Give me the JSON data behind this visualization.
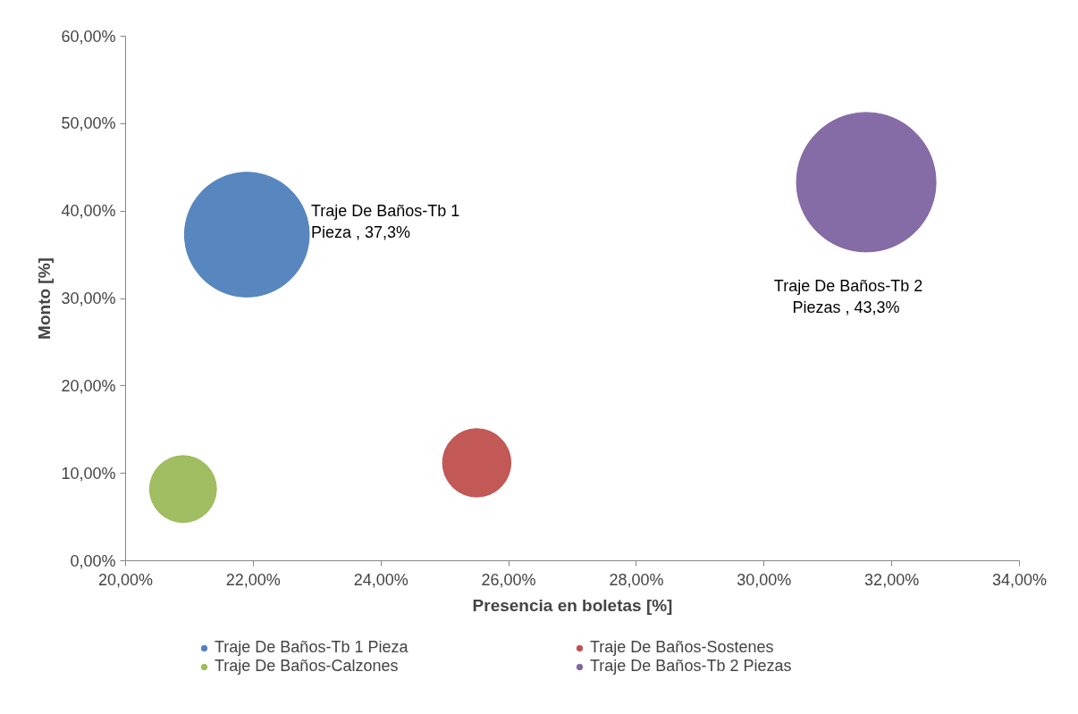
{
  "chart_data": {
    "type": "bubble",
    "xlabel": "Presencia en boletas [%]",
    "ylabel": "Monto [%]",
    "xlim": [
      20,
      34
    ],
    "ylim": [
      0,
      60
    ],
    "xticks": [
      {
        "value": 20,
        "label": "20,00%"
      },
      {
        "value": 22,
        "label": "22,00%"
      },
      {
        "value": 24,
        "label": "24,00%"
      },
      {
        "value": 26,
        "label": "26,00%"
      },
      {
        "value": 28,
        "label": "28,00%"
      },
      {
        "value": 30,
        "label": "30,00%"
      },
      {
        "value": 32,
        "label": "32,00%"
      },
      {
        "value": 34,
        "label": "34,00%"
      }
    ],
    "yticks": [
      {
        "value": 0,
        "label": "0,00%"
      },
      {
        "value": 10,
        "label": "10,00%"
      },
      {
        "value": 20,
        "label": "20,00%"
      },
      {
        "value": 30,
        "label": "30,00%"
      },
      {
        "value": 40,
        "label": "40,00%"
      },
      {
        "value": 50,
        "label": "50,00%"
      },
      {
        "value": 60,
        "label": "60,00%"
      }
    ],
    "series": [
      {
        "name": "Traje De Baños-Tb 1 Pieza",
        "color": "#4f81bd",
        "x": [
          21.9
        ],
        "values": [
          37.3
        ],
        "sizes": [
          0.8
        ],
        "value_labels": [
          "Traje De Baños-Tb 1\nPieza  , 37,3%"
        ]
      },
      {
        "name": "Traje De Baños-Sostenes",
        "color": "#c0504d",
        "x": [
          25.5
        ],
        "values": [
          11.2
        ],
        "sizes": [
          0.24
        ]
      },
      {
        "name": "Traje De Baños-Calzones",
        "color": "#9bbb59",
        "x": [
          20.9
        ],
        "values": [
          8.2
        ],
        "sizes": [
          0.23
        ]
      },
      {
        "name": "Traje De Baños-Tb 2 Piezas",
        "color": "#8064a2",
        "x": [
          31.6
        ],
        "values": [
          43.3
        ],
        "sizes": [
          1
        ],
        "value_labels": [
          "Traje De Baños-Tb 2\nPiezas  , 43,3%"
        ]
      }
    ],
    "legend": "bottom",
    "grid": false
  }
}
